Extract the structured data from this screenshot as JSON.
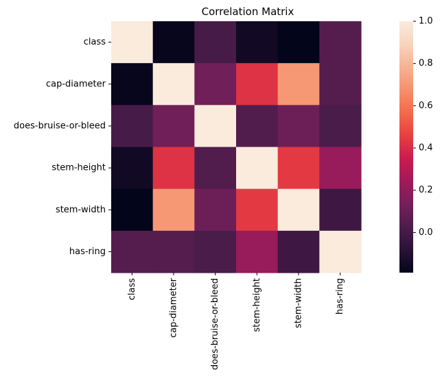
{
  "chart_data": {
    "type": "heatmap",
    "title": "Correlation Matrix",
    "row_labels": [
      "class",
      "cap-diameter",
      "does-bruise-or-bleed",
      "stem-height",
      "stem-width",
      "has-ring"
    ],
    "col_labels": [
      "class",
      "cap-diameter",
      "does-bruise-or-bleed",
      "stem-height",
      "stem-width",
      "has-ring"
    ],
    "values": [
      [
        1.0,
        -0.18,
        0.01,
        -0.15,
        -0.19,
        0.05
      ],
      [
        -0.18,
        1.0,
        0.12,
        0.42,
        0.7,
        0.05
      ],
      [
        0.01,
        0.12,
        1.0,
        0.04,
        0.11,
        0.02
      ],
      [
        -0.15,
        0.42,
        0.04,
        1.0,
        0.44,
        0.22
      ],
      [
        -0.19,
        0.7,
        0.11,
        0.44,
        1.0,
        -0.02
      ],
      [
        0.05,
        0.05,
        0.02,
        0.22,
        -0.02,
        1.0
      ]
    ],
    "vmin": -0.19,
    "vmax": 1.0,
    "colorbar_ticks": [
      "0.0",
      "0.2",
      "0.4",
      "0.6",
      "0.8",
      "1.0"
    ],
    "colorbar_tick_values": [
      0.0,
      0.2,
      0.4,
      0.6,
      0.8,
      1.0
    ],
    "colormap": [
      "#03051a",
      "#2b1237",
      "#4c1d4b",
      "#761f5a",
      "#a11a5b",
      "#cb1b4f",
      "#e83f3f",
      "#f26b4a",
      "#f6906b",
      "#f6b393",
      "#f8d4bc",
      "#faebdd"
    ],
    "grid": false,
    "legend": "colorbar-right"
  }
}
